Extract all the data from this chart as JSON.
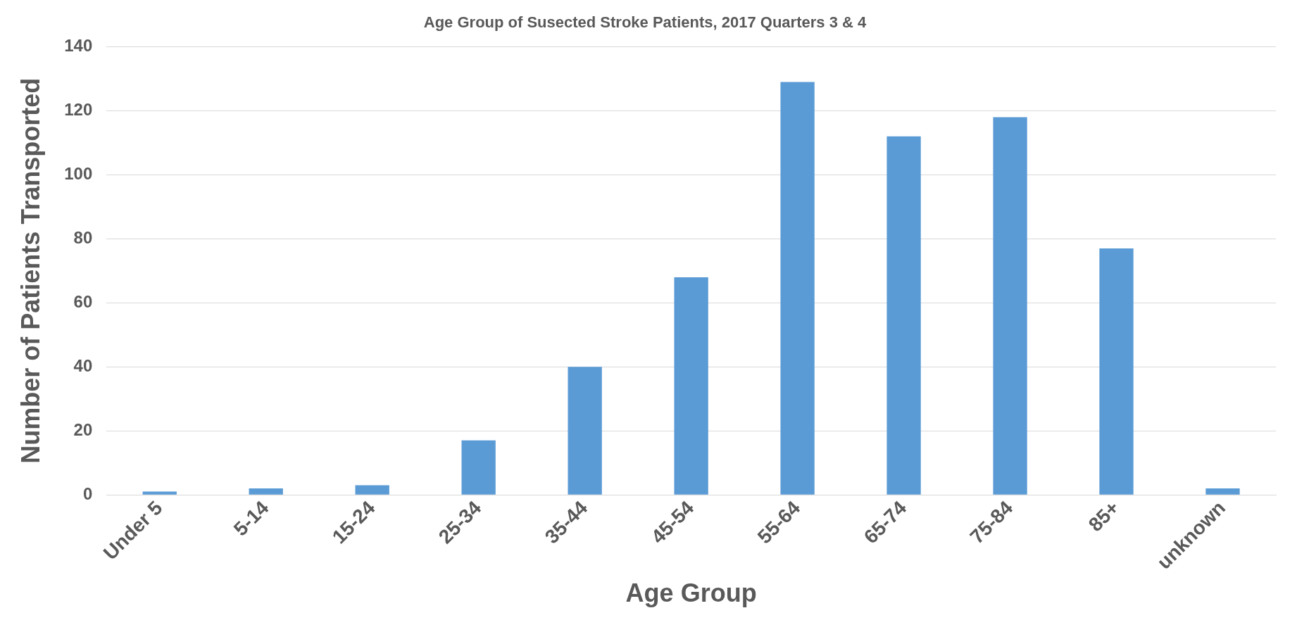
{
  "chart_data": {
    "type": "bar",
    "title": "Age Group of Susected Stroke Patients, 2017 Quarters 3 & 4",
    "xlabel": "Age Group",
    "ylabel": "Number of Patients Transported",
    "categories": [
      "Under 5",
      "5-14",
      "15-24",
      "25-34",
      "35-44",
      "45-54",
      "55-64",
      "65-74",
      "75-84",
      "85+",
      "unknown"
    ],
    "values": [
      1,
      2,
      3,
      17,
      40,
      68,
      129,
      112,
      118,
      77,
      2
    ],
    "color": "#5b9bd5",
    "ylim": [
      0,
      140
    ],
    "yticks": [
      0,
      20,
      40,
      60,
      80,
      100,
      120,
      140
    ],
    "grid": "y"
  }
}
